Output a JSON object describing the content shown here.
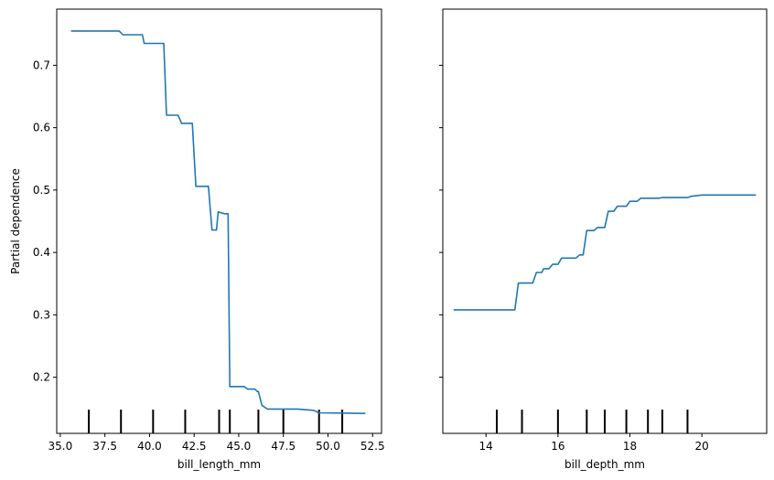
{
  "chart_data": [
    {
      "type": "line",
      "title": "",
      "xlabel": "bill_length_mm",
      "ylabel": "Partial dependence",
      "xlim": [
        34.8,
        53.0
      ],
      "ylim": [
        0.11,
        0.79
      ],
      "xticks": [
        35.0,
        37.5,
        40.0,
        42.5,
        45.0,
        47.5,
        50.0,
        52.5
      ],
      "xtick_labels": [
        "35.0",
        "37.5",
        "40.0",
        "42.5",
        "45.0",
        "47.5",
        "50.0",
        "52.5"
      ],
      "yticks": [
        0.2,
        0.3,
        0.4,
        0.5,
        0.6,
        0.7
      ],
      "ytick_labels": [
        "0.2",
        "0.3",
        "0.4",
        "0.5",
        "0.6",
        "0.7"
      ],
      "deciles": [
        36.6,
        38.4,
        40.2,
        42.0,
        43.9,
        44.5,
        46.1,
        47.5,
        49.5,
        50.8
      ],
      "series": [
        {
          "color": "#1f77b4",
          "x": [
            35.6,
            38.3,
            38.5,
            39.6,
            39.7,
            40.8,
            40.95,
            41.6,
            41.8,
            42.4,
            42.6,
            43.3,
            43.5,
            43.75,
            43.85,
            44.2,
            44.4,
            44.5,
            44.6,
            45.3,
            45.5,
            45.9,
            46.05,
            46.1,
            46.3,
            46.6,
            48.3,
            49.2,
            49.5,
            52.1
          ],
          "y": [
            0.755,
            0.755,
            0.749,
            0.749,
            0.735,
            0.735,
            0.62,
            0.62,
            0.607,
            0.607,
            0.506,
            0.506,
            0.436,
            0.436,
            0.465,
            0.462,
            0.462,
            0.185,
            0.185,
            0.185,
            0.181,
            0.181,
            0.177,
            0.177,
            0.155,
            0.149,
            0.149,
            0.147,
            0.143,
            0.142
          ]
        }
      ]
    },
    {
      "type": "line",
      "title": "",
      "xlabel": "bill_depth_mm",
      "ylabel": "",
      "xlim": [
        12.8,
        21.8
      ],
      "ylim": [
        0.11,
        0.79
      ],
      "xticks": [
        14,
        16,
        18,
        20
      ],
      "xtick_labels": [
        "14",
        "16",
        "18",
        "20"
      ],
      "yticks": [
        0.2,
        0.3,
        0.4,
        0.5,
        0.6,
        0.7
      ],
      "ytick_labels": [],
      "deciles": [
        14.3,
        15.0,
        16.0,
        16.8,
        17.3,
        17.9,
        18.5,
        18.9,
        19.6
      ],
      "series": [
        {
          "color": "#1f77b4",
          "x": [
            13.1,
            14.8,
            14.9,
            15.3,
            15.4,
            15.55,
            15.6,
            15.75,
            15.85,
            16.0,
            16.1,
            16.5,
            16.6,
            16.7,
            16.8,
            17.0,
            17.1,
            17.3,
            17.4,
            17.55,
            17.65,
            17.9,
            18.0,
            18.2,
            18.3,
            18.8,
            18.9,
            19.6,
            19.7,
            20.0,
            21.5
          ],
          "y": [
            0.308,
            0.308,
            0.351,
            0.351,
            0.368,
            0.368,
            0.374,
            0.374,
            0.381,
            0.381,
            0.391,
            0.391,
            0.396,
            0.396,
            0.435,
            0.435,
            0.44,
            0.44,
            0.466,
            0.466,
            0.474,
            0.474,
            0.482,
            0.482,
            0.487,
            0.487,
            0.488,
            0.488,
            0.49,
            0.492,
            0.492
          ]
        }
      ]
    }
  ]
}
